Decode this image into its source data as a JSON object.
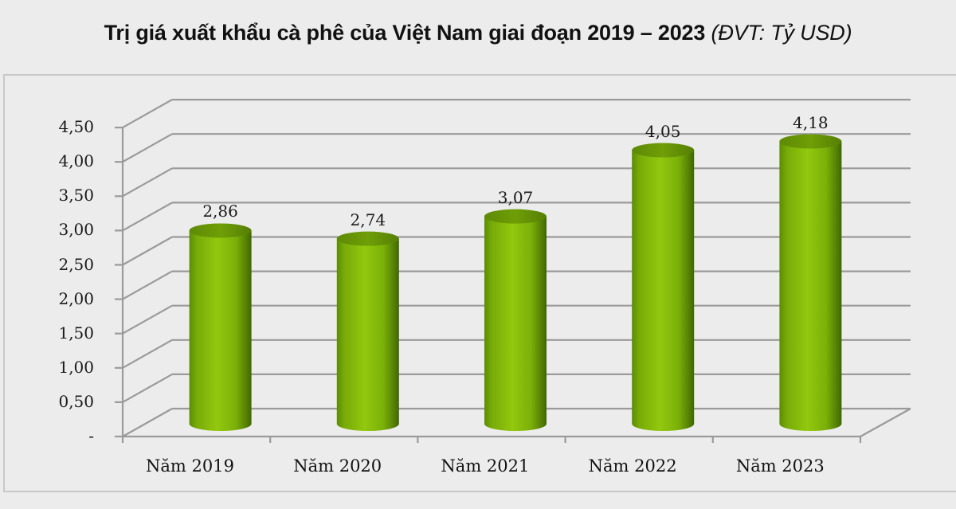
{
  "title": {
    "main": "Trị giá xuất khẩu cà phê của Việt Nam giai đoạn 2019 – 2023",
    "unit": "(ĐVT: Tỷ USD)"
  },
  "colors": {
    "bar_light": "#8fc40c",
    "bar_dark": "#4f7a05",
    "grid": "#9a9a9a",
    "background": "#ececec"
  },
  "axis": {
    "y_ticks": [
      "-",
      "0,50",
      "1,00",
      "1,50",
      "2,00",
      "2,50",
      "3,00",
      "3,50",
      "4,00",
      "4,50"
    ],
    "x_ticks": [
      "Năm 2019",
      "Năm 2020",
      "Năm 2021",
      "Năm 2022",
      "Năm 2023"
    ]
  },
  "data_labels": [
    "2,86",
    "2,74",
    "3,07",
    "4,05",
    "4,18"
  ],
  "chart_data": {
    "type": "bar",
    "style": "3d-cylinder",
    "title": "Trị giá xuất khẩu cà phê của Việt Nam giai đoạn 2019 – 2023 (ĐVT: Tỷ USD)",
    "categories": [
      "Năm 2019",
      "Năm 2020",
      "Năm 2021",
      "Năm 2022",
      "Năm 2023"
    ],
    "values": [
      2.86,
      2.74,
      3.07,
      4.05,
      4.18
    ],
    "xlabel": "",
    "ylabel": "Tỷ USD",
    "ylim": [
      0,
      4.5
    ],
    "y_tick_step": 0.5,
    "grid": true,
    "legend": "none",
    "data_labels": true
  }
}
